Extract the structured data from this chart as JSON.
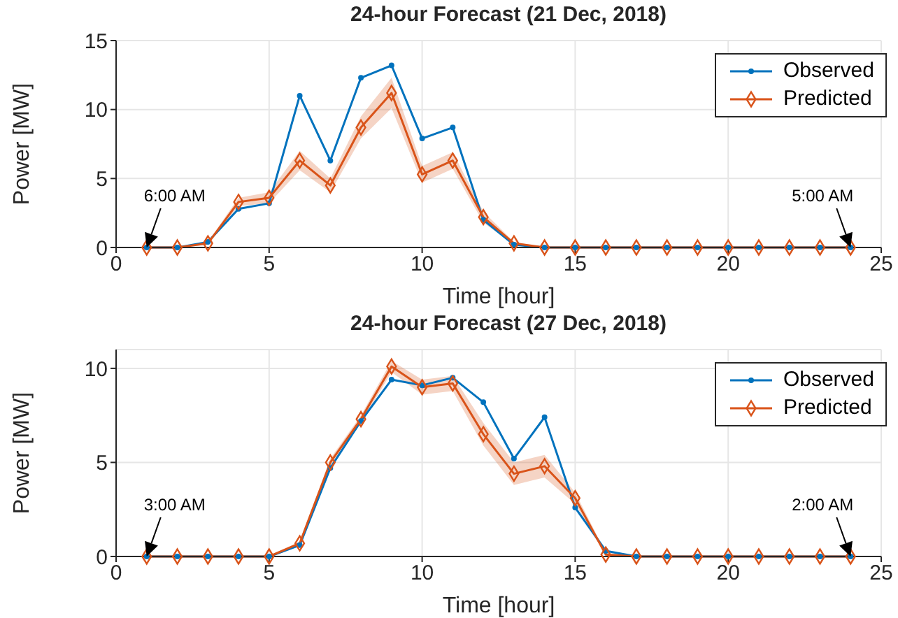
{
  "chart_data": [
    {
      "type": "line",
      "title": "24-hour Forecast (21 Dec, 2018)",
      "xlabel": "Time [hour]",
      "ylabel": "Power [MW]",
      "x": [
        1,
        2,
        3,
        4,
        5,
        6,
        7,
        8,
        9,
        10,
        11,
        12,
        13,
        14,
        15,
        16,
        17,
        18,
        19,
        20,
        21,
        22,
        23,
        24
      ],
      "xlim": [
        0,
        25
      ],
      "xticks": [
        0,
        5,
        10,
        15,
        20,
        25
      ],
      "ylim": [
        0,
        15
      ],
      "yticks": [
        0,
        5,
        10,
        15
      ],
      "grid": true,
      "legend": "top right",
      "series": [
        {
          "name": "Observed",
          "color": "#0072bd",
          "marker": "circle",
          "values": [
            0,
            0,
            0.4,
            2.8,
            3.2,
            11,
            6.3,
            12.3,
            13.2,
            7.9,
            8.7,
            2.0,
            0.2,
            0,
            0,
            0,
            0,
            0,
            0,
            0,
            0,
            0,
            0,
            0
          ]
        },
        {
          "name": "Predicted",
          "color": "#d95319",
          "marker": "diamond",
          "values": [
            0,
            0,
            0.3,
            3.3,
            3.6,
            6.3,
            4.5,
            8.7,
            11.2,
            5.3,
            6.3,
            2.2,
            0.3,
            0,
            0,
            0,
            0,
            0,
            0,
            0,
            0,
            0,
            0,
            0
          ],
          "lower": [
            0,
            0,
            0.2,
            3.0,
            3.2,
            5.6,
            4.0,
            7.9,
            10.1,
            4.7,
            5.7,
            1.8,
            0.2,
            0,
            0,
            0,
            0,
            0,
            0,
            0,
            0,
            0,
            0,
            0
          ],
          "upper": [
            0,
            0,
            0.4,
            3.6,
            4.0,
            7.0,
            5.0,
            9.5,
            12.3,
            5.9,
            6.9,
            2.6,
            0.4,
            0,
            0,
            0,
            0,
            0,
            0,
            0,
            0,
            0,
            0,
            0
          ]
        }
      ],
      "annotations": [
        "6:00 AM",
        "5:00 AM"
      ]
    },
    {
      "type": "line",
      "title": "24-hour Forecast (27 Dec, 2018)",
      "xlabel": "Time [hour]",
      "ylabel": "Power [MW]",
      "x": [
        1,
        2,
        3,
        4,
        5,
        6,
        7,
        8,
        9,
        10,
        11,
        12,
        13,
        14,
        15,
        16,
        17,
        18,
        19,
        20,
        21,
        22,
        23,
        24
      ],
      "xlim": [
        0,
        25
      ],
      "xticks": [
        0,
        5,
        10,
        15,
        20,
        25
      ],
      "ylim": [
        0,
        11
      ],
      "yticks": [
        0,
        5,
        10
      ],
      "grid": true,
      "legend": "top right",
      "series": [
        {
          "name": "Observed",
          "color": "#0072bd",
          "marker": "circle",
          "values": [
            0,
            0,
            0,
            0,
            0,
            0.6,
            4.7,
            7.2,
            9.4,
            9.1,
            9.5,
            8.2,
            5.2,
            7.4,
            2.6,
            0.3,
            0,
            0,
            0,
            0,
            0,
            0,
            0,
            0
          ]
        },
        {
          "name": "Predicted",
          "color": "#d95319",
          "marker": "diamond",
          "values": [
            0,
            0,
            0,
            0,
            0,
            0.7,
            5.0,
            7.3,
            10.1,
            9.0,
            9.2,
            6.5,
            4.4,
            4.8,
            3.1,
            0.1,
            0,
            0,
            0,
            0,
            0,
            0,
            0,
            0
          ],
          "lower": [
            0,
            0,
            0,
            0,
            0,
            0.6,
            4.8,
            7.1,
            9.8,
            8.6,
            8.8,
            5.9,
            3.8,
            4.2,
            2.8,
            0.05,
            0,
            0,
            0,
            0,
            0,
            0,
            0,
            0
          ],
          "upper": [
            0,
            0,
            0,
            0,
            0,
            0.8,
            5.2,
            7.5,
            10.4,
            9.4,
            9.6,
            7.1,
            5.0,
            5.4,
            3.4,
            0.2,
            0,
            0,
            0,
            0,
            0,
            0,
            0,
            0
          ]
        }
      ],
      "annotations": [
        "3:00 AM",
        "2:00 AM"
      ]
    }
  ]
}
